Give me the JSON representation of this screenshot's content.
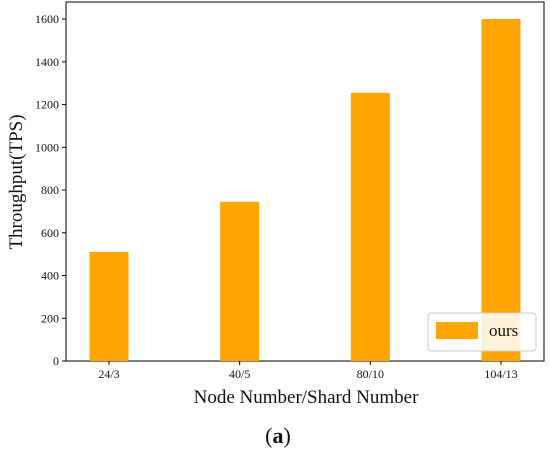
{
  "chart_data": {
    "type": "bar",
    "categories": [
      "24/3",
      "40/5",
      "80/10",
      "104/13"
    ],
    "series": [
      {
        "name": "ours",
        "values": [
          510,
          745,
          1255,
          1600
        ],
        "color": "#FFA500"
      }
    ],
    "xlabel": "Node Number/Shard Number",
    "ylabel": "Throughput(TPS)",
    "ylim": [
      0,
      1680
    ],
    "yticks": [
      0,
      200,
      400,
      600,
      800,
      1000,
      1200,
      1400,
      1600
    ],
    "grid": false,
    "legend": "lower-right"
  },
  "caption": {
    "open": "(",
    "letter": "a",
    "close": ")"
  }
}
